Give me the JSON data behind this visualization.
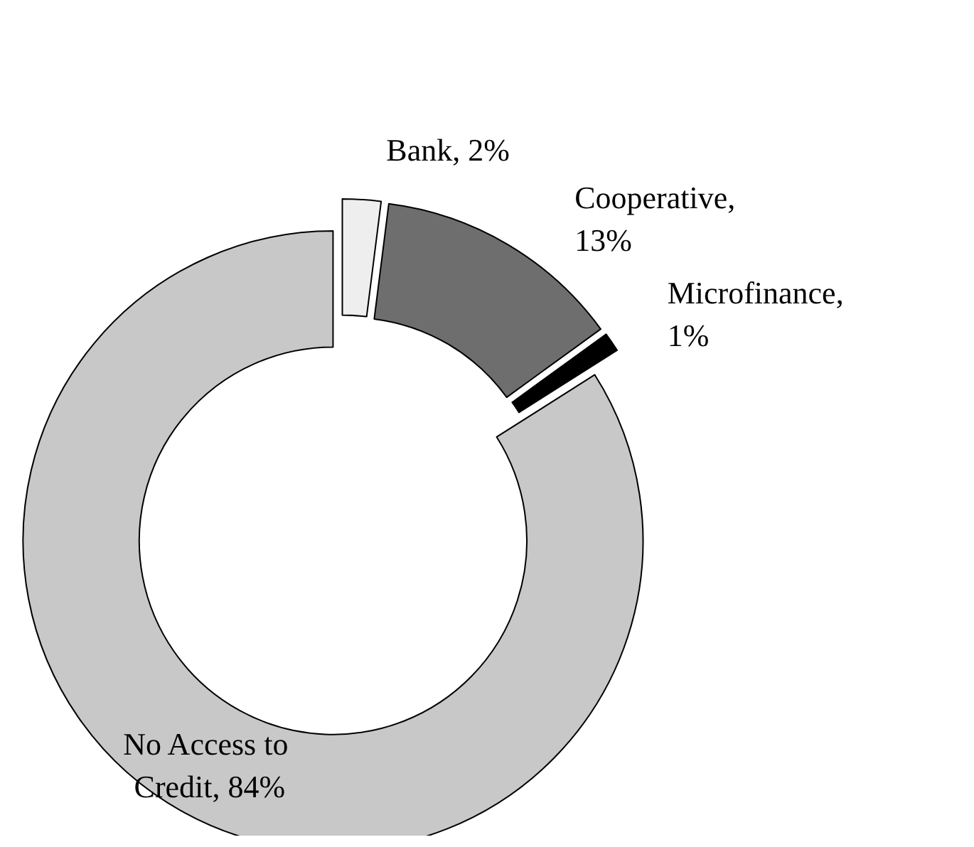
{
  "chart_data": {
    "type": "donut",
    "categories": [
      "Bank, 2%",
      "Cooperative, 13%",
      "Microfinance, 1%",
      "No Access to Credit, 84%"
    ],
    "values": [
      2,
      13,
      1,
      84
    ],
    "colors": [
      "#eeeeee",
      "#6e6e6e",
      "#000000",
      "#c8c8c8"
    ]
  }
}
